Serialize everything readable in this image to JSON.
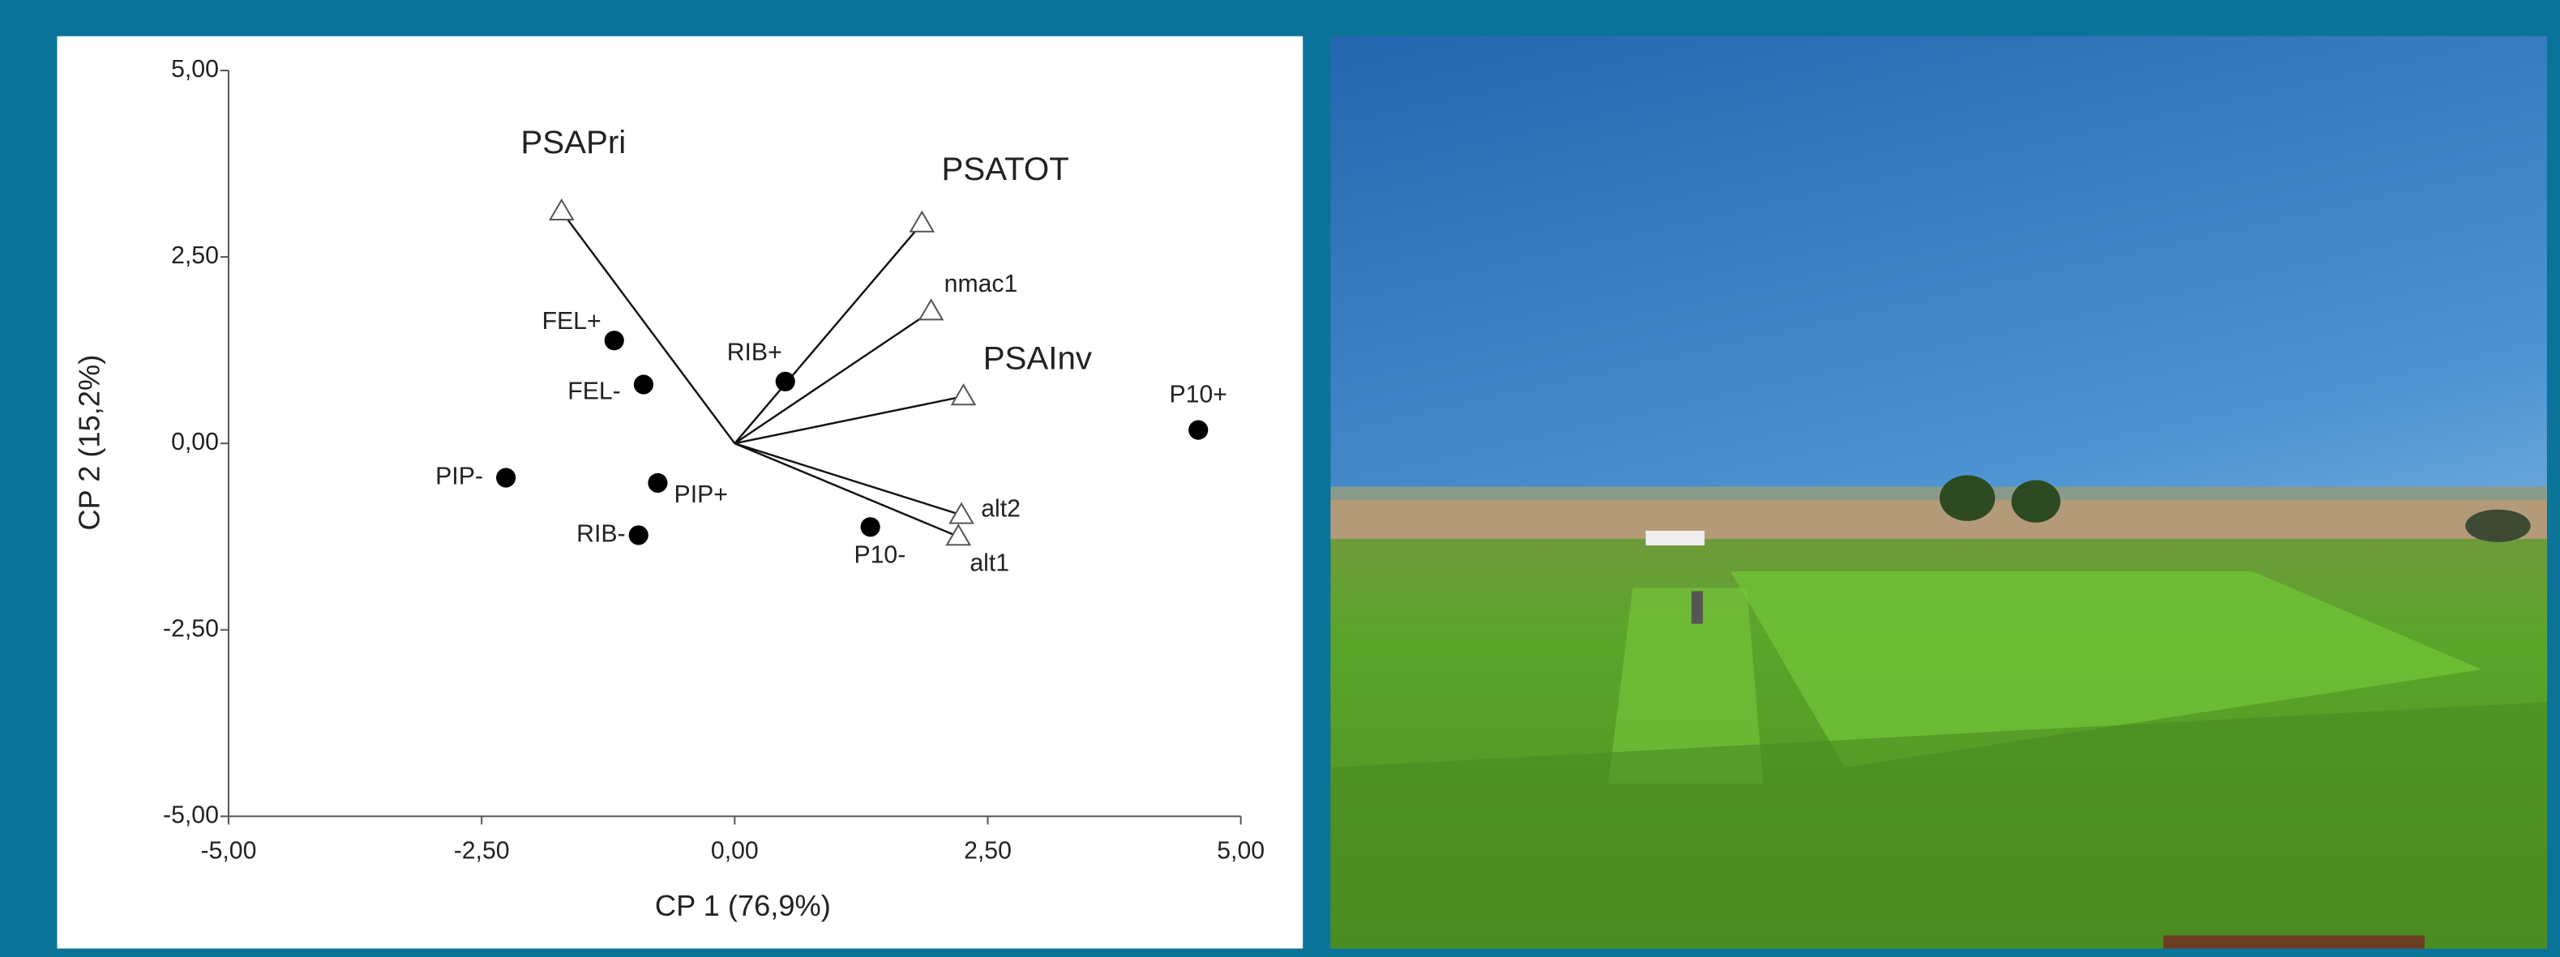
{
  "chart_data": {
    "type": "biplot",
    "xlabel": "CP 1 (76,9%)",
    "ylabel": "CP 2 (15,2%)",
    "xlim": [
      -5,
      5
    ],
    "ylim": [
      -5,
      5
    ],
    "xticks": [
      {
        "value": -5,
        "label": "-5,00"
      },
      {
        "value": -2.5,
        "label": "-2,50"
      },
      {
        "value": 0,
        "label": "0,00"
      },
      {
        "value": 2.5,
        "label": "2,50"
      },
      {
        "value": 5,
        "label": "5,00"
      }
    ],
    "yticks": [
      {
        "value": -5,
        "label": "-5,00"
      },
      {
        "value": -2.5,
        "label": "-2,50"
      },
      {
        "value": 0,
        "label": "0,00"
      },
      {
        "value": 2.5,
        "label": "2,50"
      },
      {
        "value": 5,
        "label": "5,00"
      }
    ],
    "points": {
      "names": [
        "FEL+",
        "FEL-",
        "RIB+",
        "PIP-",
        "PIP+",
        "RIB-",
        "P10-",
        "P10+"
      ],
      "x": [
        -1.19,
        -0.9,
        0.5,
        -2.26,
        -0.76,
        -0.95,
        1.34,
        4.58
      ],
      "y": [
        1.38,
        0.79,
        0.83,
        -0.46,
        -0.53,
        -1.23,
        -1.12,
        0.18
      ]
    },
    "vectors": {
      "names": [
        "PSAPri",
        "PSATOT",
        "nmac1",
        "PSAInv",
        "alt2",
        "alt1"
      ],
      "x": [
        -1.71,
        1.85,
        1.94,
        2.26,
        2.24,
        2.21
      ],
      "y": [
        3.11,
        2.95,
        1.77,
        0.63,
        -0.96,
        -1.25
      ]
    }
  }
}
